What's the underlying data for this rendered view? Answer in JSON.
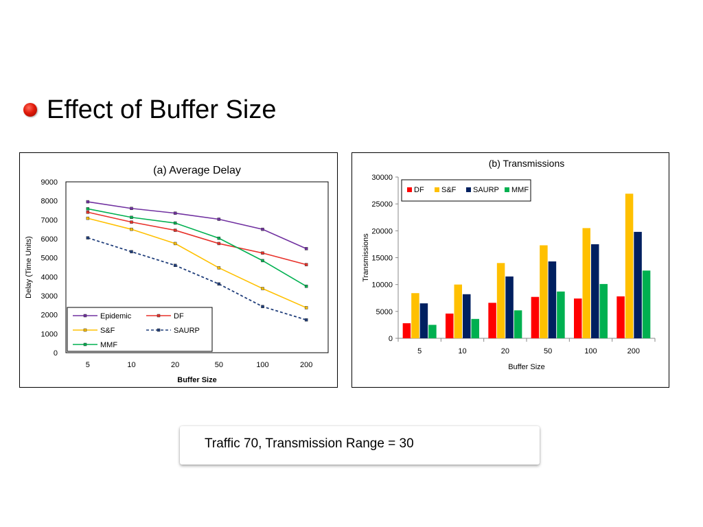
{
  "slide": {
    "title": "Effect of Buffer Size",
    "caption": "Traffic 70, Transmission Range = 30"
  },
  "chart_data": [
    {
      "type": "line",
      "title": "(a) Average Delay",
      "xlabel": "Buffer Size",
      "ylabel": "Delay (Time Units)",
      "categories": [
        "5",
        "10",
        "20",
        "50",
        "100",
        "200"
      ],
      "ylim": [
        0,
        9000
      ],
      "yticks": [
        0,
        1000,
        2000,
        3000,
        4000,
        5000,
        6000,
        7000,
        8000,
        9000
      ],
      "grid": false,
      "legend_position": "bottom-left",
      "series": [
        {
          "name": "Epidemic",
          "color": "#7030A0",
          "dash": false,
          "values": [
            7950,
            7600,
            7350,
            7030,
            6500,
            5480
          ]
        },
        {
          "name": "DF",
          "color": "#E8312A",
          "dash": false,
          "values": [
            7400,
            6880,
            6450,
            5750,
            5250,
            4640
          ]
        },
        {
          "name": "S&F",
          "color": "#FFC000",
          "dash": false,
          "values": [
            7080,
            6500,
            5750,
            4470,
            3380,
            2370
          ]
        },
        {
          "name": "SAURP",
          "color": "#1F3D7A",
          "dash": true,
          "values": [
            6050,
            5320,
            4600,
            3620,
            2430,
            1730
          ]
        },
        {
          "name": "MMF",
          "color": "#00B050",
          "dash": false,
          "values": [
            7580,
            7130,
            6830,
            6030,
            4850,
            3500
          ]
        }
      ]
    },
    {
      "type": "bar",
      "title": "(b) Transmissions",
      "xlabel": "Buffer Size",
      "ylabel": "Transmissions",
      "categories": [
        "5",
        "10",
        "20",
        "50",
        "100",
        "200"
      ],
      "ylim": [
        0,
        30000
      ],
      "yticks": [
        0,
        5000,
        10000,
        15000,
        20000,
        25000,
        30000
      ],
      "grid": false,
      "legend_position": "top-left",
      "series": [
        {
          "name": "DF",
          "color": "#FF0000",
          "values": [
            2800,
            4600,
            6600,
            7700,
            7400,
            7800
          ]
        },
        {
          "name": "S&F",
          "color": "#FFC000",
          "values": [
            8400,
            10000,
            14000,
            17300,
            20500,
            26900
          ]
        },
        {
          "name": "SAURP",
          "color": "#002060",
          "values": [
            6500,
            8200,
            11500,
            14300,
            17500,
            19800
          ]
        },
        {
          "name": "MMF",
          "color": "#00B050",
          "values": [
            2500,
            3600,
            5200,
            8700,
            10100,
            12600
          ]
        }
      ]
    }
  ]
}
